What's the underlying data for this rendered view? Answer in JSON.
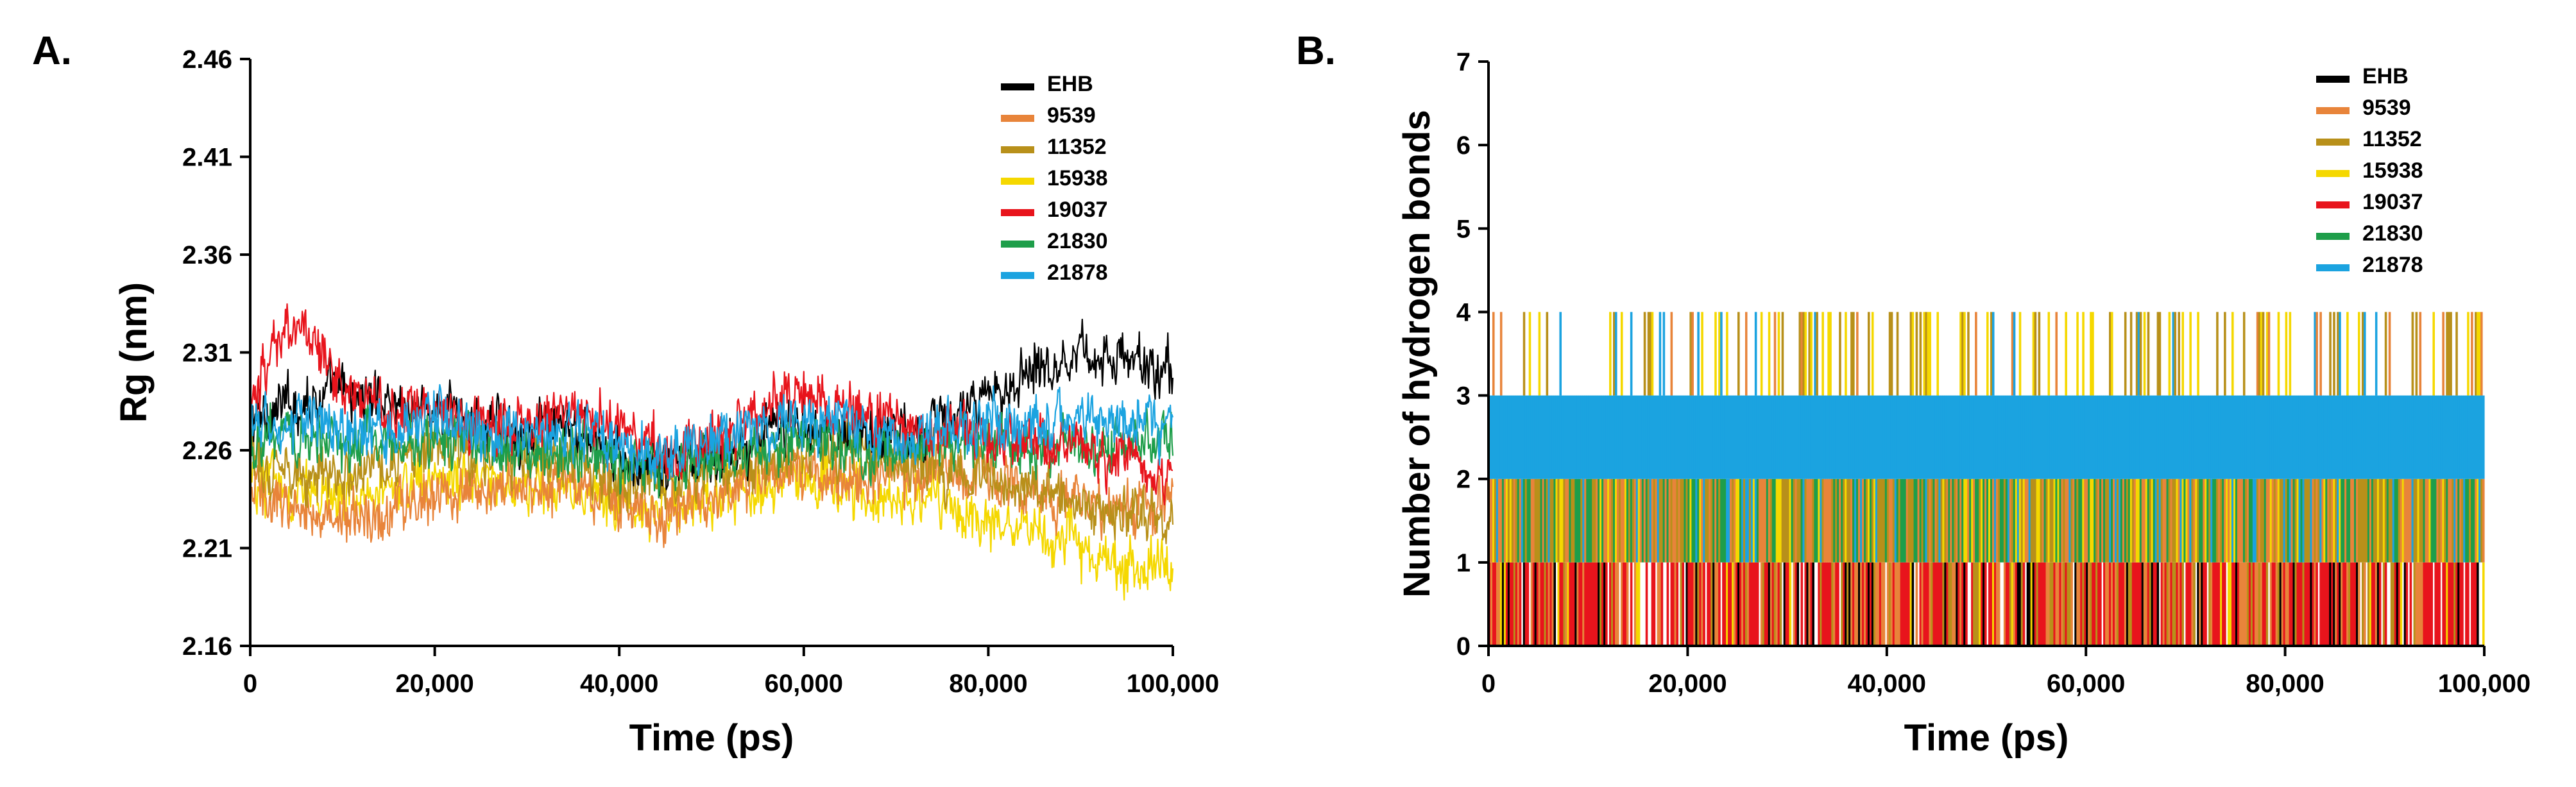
{
  "chart_data": [
    {
      "panel": "A.",
      "type": "line",
      "xlabel": "Time (ps)",
      "ylabel": "Rg (nm)",
      "xlim": [
        0,
        100000
      ],
      "ylim": [
        2.16,
        2.46
      ],
      "xticks": [
        0,
        20000,
        40000,
        60000,
        80000,
        100000
      ],
      "xtick_labels": [
        "0",
        "20,000",
        "40,000",
        "60,000",
        "80,000",
        "100,000"
      ],
      "yticks": [
        2.16,
        2.21,
        2.26,
        2.31,
        2.36,
        2.41,
        2.46
      ],
      "ytick_labels": [
        "2.16",
        "2.21",
        "2.26",
        "2.31",
        "2.36",
        "2.41",
        "2.46"
      ],
      "legend": "top-right",
      "x": [
        0,
        5000,
        10000,
        15000,
        20000,
        25000,
        30000,
        35000,
        40000,
        45000,
        50000,
        55000,
        60000,
        65000,
        70000,
        75000,
        80000,
        85000,
        90000,
        95000,
        100000
      ],
      "series": [
        {
          "name": "EHB",
          "color": "#000000",
          "values": [
            2.275,
            2.285,
            2.29,
            2.285,
            2.28,
            2.275,
            2.27,
            2.27,
            2.255,
            2.25,
            2.255,
            2.265,
            2.275,
            2.27,
            2.27,
            2.275,
            2.285,
            2.305,
            2.31,
            2.305,
            2.3
          ]
        },
        {
          "name": "9539",
          "color": "#E8843A",
          "values": [
            2.24,
            2.23,
            2.225,
            2.23,
            2.235,
            2.24,
            2.245,
            2.245,
            2.235,
            2.225,
            2.235,
            2.245,
            2.25,
            2.245,
            2.245,
            2.25,
            2.245,
            2.24,
            2.235,
            2.23,
            2.235
          ]
        },
        {
          "name": "11352",
          "color": "#B8901A",
          "values": [
            2.255,
            2.25,
            2.25,
            2.255,
            2.26,
            2.26,
            2.255,
            2.255,
            2.245,
            2.24,
            2.25,
            2.255,
            2.26,
            2.26,
            2.255,
            2.25,
            2.245,
            2.24,
            2.235,
            2.23,
            2.225
          ]
        },
        {
          "name": "15938",
          "color": "#F5D800",
          "values": [
            2.245,
            2.24,
            2.235,
            2.24,
            2.245,
            2.245,
            2.24,
            2.24,
            2.235,
            2.23,
            2.235,
            2.24,
            2.245,
            2.24,
            2.235,
            2.23,
            2.225,
            2.22,
            2.21,
            2.2,
            2.2
          ]
        },
        {
          "name": "19037",
          "color": "#E8141C",
          "values": [
            2.285,
            2.33,
            2.29,
            2.28,
            2.28,
            2.275,
            2.275,
            2.28,
            2.275,
            2.255,
            2.265,
            2.28,
            2.29,
            2.28,
            2.275,
            2.27,
            2.27,
            2.265,
            2.26,
            2.255,
            2.25
          ]
        },
        {
          "name": "21830",
          "color": "#1E9E4A",
          "values": [
            2.265,
            2.27,
            2.265,
            2.265,
            2.265,
            2.26,
            2.26,
            2.26,
            2.255,
            2.25,
            2.255,
            2.26,
            2.265,
            2.26,
            2.26,
            2.265,
            2.265,
            2.26,
            2.26,
            2.265,
            2.265
          ]
        },
        {
          "name": "21878",
          "color": "#1BA3E0",
          "values": [
            2.27,
            2.275,
            2.27,
            2.27,
            2.275,
            2.27,
            2.27,
            2.27,
            2.26,
            2.255,
            2.265,
            2.27,
            2.275,
            2.27,
            2.265,
            2.27,
            2.275,
            2.275,
            2.28,
            2.275,
            2.275
          ]
        }
      ]
    },
    {
      "panel": "B.",
      "type": "bar",
      "xlabel": "Time (ps)",
      "ylabel": "Number of hydrogen bonds",
      "xlim": [
        0,
        100000
      ],
      "ylim": [
        0,
        7
      ],
      "xticks": [
        0,
        20000,
        40000,
        60000,
        80000,
        100000
      ],
      "xtick_labels": [
        "0",
        "20,000",
        "40,000",
        "60,000",
        "80,000",
        "100,000"
      ],
      "yticks": [
        0,
        1,
        2,
        3,
        4,
        5,
        6,
        7
      ],
      "ytick_labels": [
        "0",
        "1",
        "2",
        "3",
        "4",
        "5",
        "6",
        "7"
      ],
      "legend": "top-right",
      "series": [
        {
          "name": "EHB",
          "color": "#000000"
        },
        {
          "name": "9539",
          "color": "#E8843A"
        },
        {
          "name": "11352",
          "color": "#B8901A"
        },
        {
          "name": "15938",
          "color": "#F5D800"
        },
        {
          "name": "19037",
          "color": "#E8141C"
        },
        {
          "name": "21830",
          "color": "#1E9E4A"
        },
        {
          "name": "21878",
          "color": "#1BA3E0"
        }
      ],
      "bands": [
        {
          "ymin": 0,
          "ymax": 1,
          "mix": [
            {
              "name": "19037",
              "weight": 0.45
            },
            {
              "name": "9539",
              "weight": 0.2
            },
            {
              "name": "EHB",
              "weight": 0.1
            },
            {
              "name": "11352",
              "weight": 0.1
            },
            {
              "name": "15938",
              "weight": 0.05
            }
          ],
          "blank_weight": 0.1
        },
        {
          "ymin": 1,
          "ymax": 2,
          "mix": [
            {
              "name": "11352",
              "weight": 0.3
            },
            {
              "name": "9539",
              "weight": 0.25
            },
            {
              "name": "21830",
              "weight": 0.25
            },
            {
              "name": "15938",
              "weight": 0.1
            },
            {
              "name": "21878",
              "weight": 0.1
            }
          ],
          "blank_weight": 0
        },
        {
          "ymin": 2,
          "ymax": 3,
          "mix": [
            {
              "name": "21878",
              "weight": 1.0
            }
          ],
          "blank_weight": 0
        },
        {
          "ymin": 3,
          "ymax": 4,
          "mix": [
            {
              "name": "11352",
              "weight": 0.1
            },
            {
              "name": "15938",
              "weight": 0.1
            },
            {
              "name": "21878",
              "weight": 0.04
            },
            {
              "name": "9539",
              "weight": 0.03
            }
          ],
          "blank_weight": 0.73
        }
      ]
    }
  ]
}
